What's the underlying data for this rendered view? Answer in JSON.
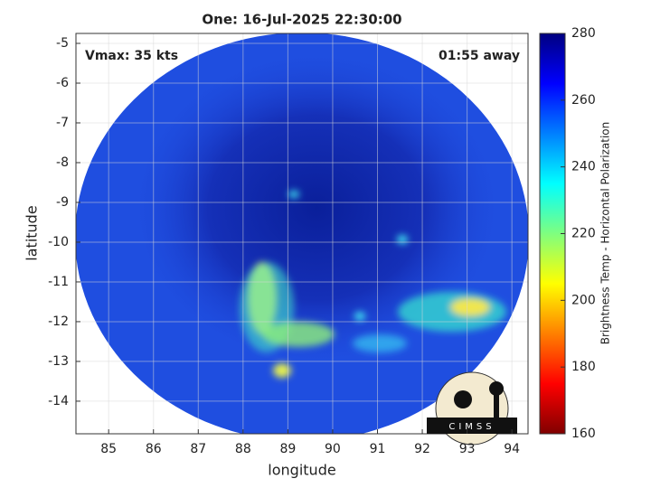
{
  "chart_data": {
    "type": "swath-map",
    "title": "One: 16-Jul-2025 22:30:00",
    "xlabel": "longitude",
    "ylabel": "latitude",
    "annotations": [
      "Vmax: 35 kts",
      "01:55 away"
    ],
    "logo_text": "CIMSS",
    "xlim": [
      84.27,
      94.36
    ],
    "ylim": [
      -14.82,
      -4.75
    ],
    "xticks": [
      85,
      86,
      87,
      88,
      89,
      90,
      91,
      92,
      93,
      94
    ],
    "yticks": [
      -5,
      -6,
      -7,
      -8,
      -9,
      -10,
      -11,
      -12,
      -13,
      -14
    ],
    "grid": true,
    "colorbar": {
      "label": "Brightness Temp - Horizontal Polarization",
      "lim": [
        160,
        280
      ],
      "ticks": [
        160,
        180,
        200,
        220,
        240,
        260,
        280
      ],
      "colormap": "jet"
    }
  }
}
